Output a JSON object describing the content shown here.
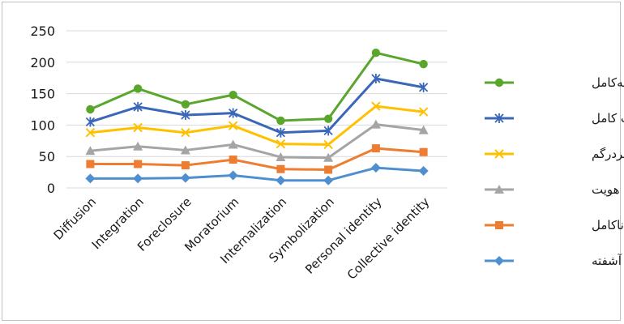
{
  "chart_data": {
    "type": "line",
    "title": "",
    "xlabel": "",
    "ylabel": "",
    "categories": [
      "Diffusion",
      "Integration",
      "Foreclosure",
      "Moratorium",
      "Internalization",
      "Symbolization",
      "Personal identity",
      "Collective identity"
    ],
    "ylim": [
      0,
      250
    ],
    "yticks": [
      0,
      50,
      100,
      150,
      200,
      250
    ],
    "grid": true,
    "legend_position": "right",
    "series": [
      {
        "name": "هویت نیمه‌کامل",
        "color": "#5aa62d",
        "marker": "circle",
        "values": [
          125,
          158,
          133,
          148,
          107,
          110,
          215,
          197
        ]
      },
      {
        "name": "هویت کامل",
        "color": "#3a67b8",
        "marker": "star",
        "values": [
          105,
          129,
          116,
          119,
          88,
          91,
          174,
          160
        ]
      },
      {
        "name": "هویت سردرگم",
        "color": "#ffc000",
        "marker": "x",
        "values": [
          88,
          96,
          88,
          99,
          70,
          69,
          130,
          121
        ]
      },
      {
        "name": "ضبط هویت",
        "color": "#a5a5a5",
        "marker": "triangle",
        "values": [
          59,
          66,
          60,
          69,
          49,
          48,
          101,
          92
        ]
      },
      {
        "name": "هویت ناکامل",
        "color": "#ed7d31",
        "marker": "square",
        "values": [
          38,
          38,
          36,
          45,
          30,
          29,
          63,
          57
        ]
      },
      {
        "name": "هویت آشفته",
        "color": "#4f8fd0",
        "marker": "diamond",
        "values": [
          15,
          15,
          16,
          20,
          12,
          12,
          32,
          27
        ]
      }
    ]
  }
}
